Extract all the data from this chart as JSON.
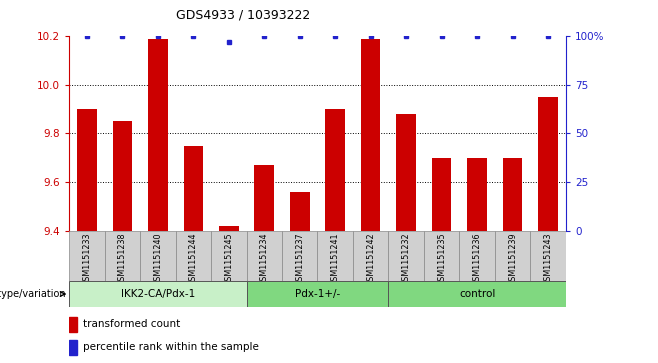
{
  "title": "GDS4933 / 10393222",
  "samples": [
    "GSM1151233",
    "GSM1151238",
    "GSM1151240",
    "GSM1151244",
    "GSM1151245",
    "GSM1151234",
    "GSM1151237",
    "GSM1151241",
    "GSM1151242",
    "GSM1151232",
    "GSM1151235",
    "GSM1151236",
    "GSM1151239",
    "GSM1151243"
  ],
  "bar_values": [
    9.9,
    9.85,
    10.19,
    9.75,
    9.42,
    9.67,
    9.56,
    9.9,
    10.19,
    9.88,
    9.7,
    9.7,
    9.7,
    9.95
  ],
  "percentile_values": [
    100,
    100,
    100,
    100,
    97,
    100,
    100,
    100,
    100,
    100,
    100,
    100,
    100,
    100
  ],
  "ylim_left": [
    9.4,
    10.2
  ],
  "ylim_right": [
    0,
    100
  ],
  "yticks_left": [
    9.4,
    9.6,
    9.8,
    10.0,
    10.2
  ],
  "yticks_right": [
    0,
    25,
    50,
    75,
    100
  ],
  "ytick_labels_right": [
    "0",
    "25",
    "50",
    "75",
    "100%"
  ],
  "grid_values": [
    9.6,
    9.8,
    10.0
  ],
  "groups": [
    {
      "label": "IKK2-CA/Pdx-1",
      "start": 0,
      "end": 5,
      "color": "#c8f0c8"
    },
    {
      "label": "Pdx-1+/-",
      "start": 5,
      "end": 9,
      "color": "#80d880"
    },
    {
      "label": "control",
      "start": 9,
      "end": 14,
      "color": "#80d880"
    }
  ],
  "bar_color": "#cc0000",
  "dot_color": "#2222cc",
  "bar_bottom": 9.4,
  "bar_width": 0.55,
  "genotype_label": "genotype/variation",
  "legend_items": [
    {
      "color": "#cc0000",
      "label": "transformed count"
    },
    {
      "color": "#2222cc",
      "label": "percentile rank within the sample"
    }
  ],
  "tick_area_color": "#d0d0d0"
}
